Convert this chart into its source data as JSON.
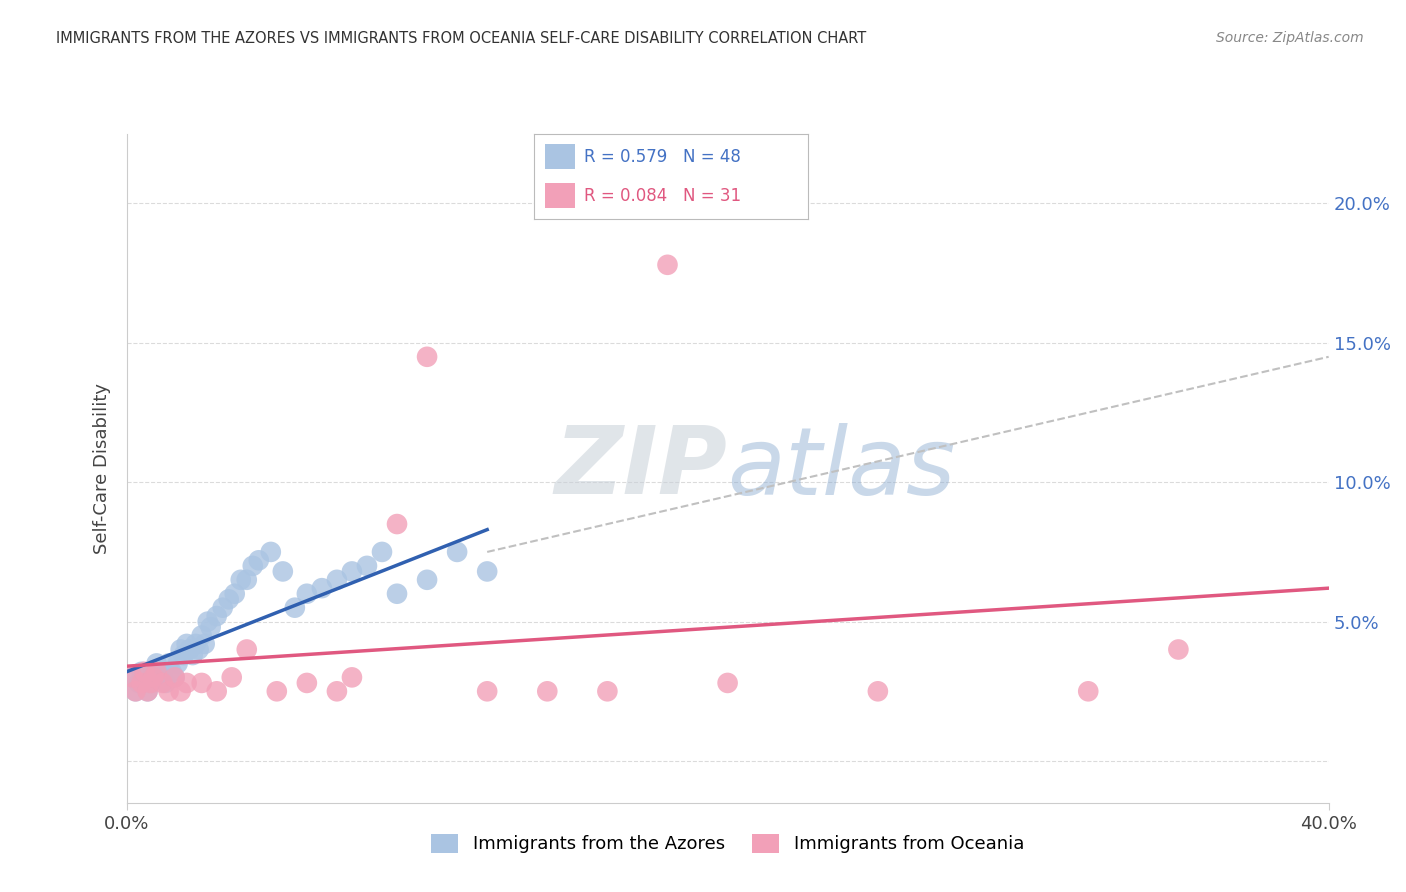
{
  "title": "IMMIGRANTS FROM THE AZORES VS IMMIGRANTS FROM OCEANIA SELF-CARE DISABILITY CORRELATION CHART",
  "source": "Source: ZipAtlas.com",
  "ylabel": "Self-Care Disability",
  "xlim": [
    0.0,
    0.4
  ],
  "ylim": [
    -0.015,
    0.225
  ],
  "series1_color": "#aac4e2",
  "series2_color": "#f2a0b8",
  "line1_color": "#3060b0",
  "line2_color": "#e05880",
  "dashed_line_color": "#c0c0c0",
  "background_color": "#ffffff",
  "watermark_color": "#c8d8ea",
  "legend_R1": "R = 0.579",
  "legend_N1": "N = 48",
  "legend_R2": "R = 0.084",
  "legend_N2": "N = 31",
  "label1": "Immigrants from the Azores",
  "label2": "Immigrants from Oceania",
  "azores_x": [
    0.002,
    0.003,
    0.004,
    0.005,
    0.006,
    0.007,
    0.008,
    0.009,
    0.01,
    0.011,
    0.012,
    0.013,
    0.014,
    0.015,
    0.016,
    0.017,
    0.018,
    0.019,
    0.02,
    0.021,
    0.022,
    0.023,
    0.024,
    0.025,
    0.026,
    0.027,
    0.028,
    0.03,
    0.032,
    0.034,
    0.036,
    0.038,
    0.04,
    0.042,
    0.044,
    0.048,
    0.052,
    0.056,
    0.06,
    0.065,
    0.07,
    0.075,
    0.08,
    0.085,
    0.09,
    0.1,
    0.11,
    0.12
  ],
  "azores_y": [
    0.03,
    0.025,
    0.028,
    0.032,
    0.03,
    0.025,
    0.028,
    0.032,
    0.035,
    0.03,
    0.032,
    0.028,
    0.035,
    0.032,
    0.03,
    0.035,
    0.04,
    0.038,
    0.042,
    0.04,
    0.038,
    0.042,
    0.04,
    0.045,
    0.042,
    0.05,
    0.048,
    0.052,
    0.055,
    0.058,
    0.06,
    0.065,
    0.065,
    0.07,
    0.072,
    0.075,
    0.068,
    0.055,
    0.06,
    0.062,
    0.065,
    0.068,
    0.07,
    0.075,
    0.06,
    0.065,
    0.075,
    0.068
  ],
  "oceania_x": [
    0.002,
    0.003,
    0.005,
    0.006,
    0.007,
    0.008,
    0.009,
    0.01,
    0.012,
    0.014,
    0.016,
    0.018,
    0.02,
    0.025,
    0.03,
    0.035,
    0.04,
    0.05,
    0.06,
    0.07,
    0.075,
    0.09,
    0.1,
    0.12,
    0.14,
    0.16,
    0.18,
    0.2,
    0.25,
    0.32,
    0.35
  ],
  "oceania_y": [
    0.03,
    0.025,
    0.028,
    0.032,
    0.025,
    0.028,
    0.03,
    0.032,
    0.028,
    0.025,
    0.03,
    0.025,
    0.028,
    0.028,
    0.025,
    0.03,
    0.04,
    0.025,
    0.028,
    0.025,
    0.03,
    0.085,
    0.145,
    0.025,
    0.025,
    0.025,
    0.178,
    0.028,
    0.025,
    0.025,
    0.04
  ],
  "blue_line_x": [
    0.0,
    0.12
  ],
  "blue_line_y": [
    0.032,
    0.083
  ],
  "pink_line_x": [
    0.0,
    0.4
  ],
  "pink_line_y": [
    0.034,
    0.062
  ],
  "dash_line_x": [
    0.12,
    0.4
  ],
  "dash_line_y": [
    0.075,
    0.145
  ]
}
